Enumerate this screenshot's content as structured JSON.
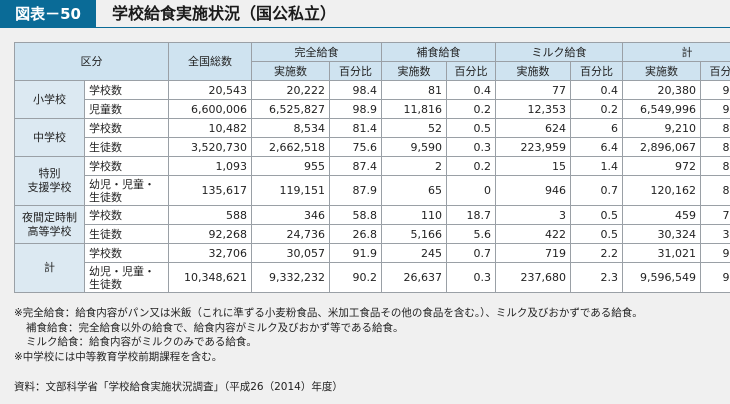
{
  "figure": {
    "label": "図表－50",
    "title": "学校給食実施状況（国公私立）"
  },
  "headers": {
    "category": "区分",
    "total": "全国総数",
    "groups": [
      "完全給食",
      "補食給食",
      "ミルク給食",
      "計"
    ],
    "sub_count": "実施数",
    "sub_pct": "百分比"
  },
  "groups": [
    {
      "name": "小学校",
      "rows": [
        {
          "label": "学校数",
          "values": [
            "20,543",
            "20,222",
            "98.4",
            "81",
            "0.4",
            "77",
            "0.4",
            "20,380",
            "99.2"
          ]
        },
        {
          "label": "児童数",
          "values": [
            "6,600,006",
            "6,525,827",
            "98.9",
            "11,816",
            "0.2",
            "12,353",
            "0.2",
            "6,549,996",
            "99.2"
          ]
        }
      ]
    },
    {
      "name": "中学校",
      "rows": [
        {
          "label": "学校数",
          "values": [
            "10,482",
            "8,534",
            "81.4",
            "52",
            "0.5",
            "624",
            "6",
            "9,210",
            "87.9"
          ]
        },
        {
          "label": "生徒数",
          "values": [
            "3,520,730",
            "2,662,518",
            "75.6",
            "9,590",
            "0.3",
            "223,959",
            "6.4",
            "2,896,067",
            "82.3"
          ]
        }
      ]
    },
    {
      "name_lines": [
        "特別",
        "支援学校"
      ],
      "rows": [
        {
          "label": "学校数",
          "values": [
            "1,093",
            "955",
            "87.4",
            "2",
            "0.2",
            "15",
            "1.4",
            "972",
            "88.9"
          ]
        },
        {
          "label_lines": [
            "幼児・児童・",
            "生徒数"
          ],
          "values": [
            "135,617",
            "119,151",
            "87.9",
            "65",
            "0",
            "946",
            "0.7",
            "120,162",
            "88.6"
          ]
        }
      ]
    },
    {
      "name_lines": [
        "夜間定時制",
        "高等学校"
      ],
      "rows": [
        {
          "label": "学校数",
          "values": [
            "588",
            "346",
            "58.8",
            "110",
            "18.7",
            "3",
            "0.5",
            "459",
            "78.1"
          ]
        },
        {
          "label": "生徒数",
          "values": [
            "92,268",
            "24,736",
            "26.8",
            "5,166",
            "5.6",
            "422",
            "0.5",
            "30,324",
            "32.9"
          ]
        }
      ]
    },
    {
      "name": "計",
      "rows": [
        {
          "label": "学校数",
          "values": [
            "32,706",
            "30,057",
            "91.9",
            "245",
            "0.7",
            "719",
            "2.2",
            "31,021",
            "94.8"
          ]
        },
        {
          "label_lines": [
            "幼児・児童・",
            "生徒数"
          ],
          "values": [
            "10,348,621",
            "9,332,232",
            "90.2",
            "26,637",
            "0.3",
            "237,680",
            "2.3",
            "9,596,549",
            "92.7"
          ]
        }
      ]
    }
  ],
  "notes": [
    "※完全給食：給食内容がパン又は米飯（これに準ずる小麦粉食品、米加工食品その他の食品を含む。）、ミルク及びおかずである給食。",
    "補食給食：完全給食以外の給食で、給食内容がミルク及びおかず等である給食。",
    "ミルク給食：給食内容がミルクのみである給食。",
    "※中学校には中等教育学校前期課程を含む。"
  ],
  "source": "資料：文部科学省「学校給食実施状況調査」（平成26（2014）年度）"
}
